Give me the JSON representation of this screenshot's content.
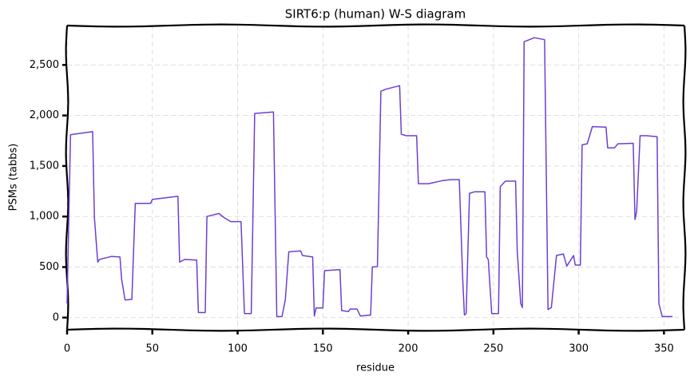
{
  "chart_data": {
    "type": "line",
    "title": "SIRT6:p (human) W-S diagram",
    "x_label": "residue",
    "y_label": "PSMs (tabbs)",
    "color": "#6d3fd0",
    "grid": true,
    "xlim": [
      0,
      362
    ],
    "ylim": [
      -120,
      2890
    ],
    "xticks": [
      0,
      50,
      100,
      150,
      200,
      250,
      300,
      350
    ],
    "yticks": [
      0,
      500,
      {
        "value": 1000,
        "label": "1,000"
      },
      {
        "value": 1500,
        "label": "1,500"
      },
      {
        "value": 2000,
        "label": "2,000"
      },
      {
        "value": 2500,
        "label": "2,500"
      }
    ],
    "x": [
      0,
      2,
      15,
      16,
      18,
      19,
      26,
      31,
      32,
      34,
      38,
      40,
      49,
      50,
      65,
      66,
      69,
      76,
      77,
      81,
      82,
      89,
      92,
      96,
      102,
      104,
      108,
      110,
      121,
      123,
      126,
      128,
      130,
      137,
      138,
      144,
      145,
      146,
      150,
      151,
      160,
      161,
      165,
      166,
      170,
      172,
      178,
      179,
      182,
      184,
      187,
      195,
      196,
      199,
      205,
      206,
      212,
      220,
      225,
      230,
      232,
      233,
      234,
      236,
      239,
      245,
      246,
      247,
      249,
      253,
      254,
      257,
      263,
      264,
      266,
      267,
      268,
      274,
      280,
      282,
      284,
      287,
      291,
      293,
      297,
      298,
      301,
      302,
      305,
      308,
      316,
      317,
      321,
      323,
      332,
      333,
      334,
      336,
      340,
      346,
      347,
      349,
      355
    ],
    "values": [
      140,
      1810,
      1840,
      990,
      550,
      575,
      605,
      600,
      380,
      175,
      180,
      1130,
      1130,
      1170,
      1200,
      550,
      575,
      570,
      50,
      50,
      1000,
      1030,
      990,
      950,
      950,
      40,
      40,
      2020,
      2035,
      10,
      10,
      180,
      650,
      660,
      615,
      600,
      15,
      95,
      95,
      465,
      475,
      70,
      60,
      85,
      85,
      15,
      25,
      500,
      505,
      2240,
      2260,
      2295,
      1815,
      1800,
      1800,
      1325,
      1325,
      1355,
      1365,
      1365,
      380,
      25,
      40,
      1230,
      1245,
      1245,
      600,
      575,
      40,
      40,
      1295,
      1350,
      1350,
      655,
      140,
      100,
      2730,
      2770,
      2750,
      80,
      100,
      615,
      630,
      510,
      615,
      520,
      520,
      1710,
      1720,
      1890,
      1885,
      1680,
      1680,
      1720,
      1725,
      970,
      1050,
      1800,
      1800,
      1790,
      140,
      10,
      10
    ]
  }
}
